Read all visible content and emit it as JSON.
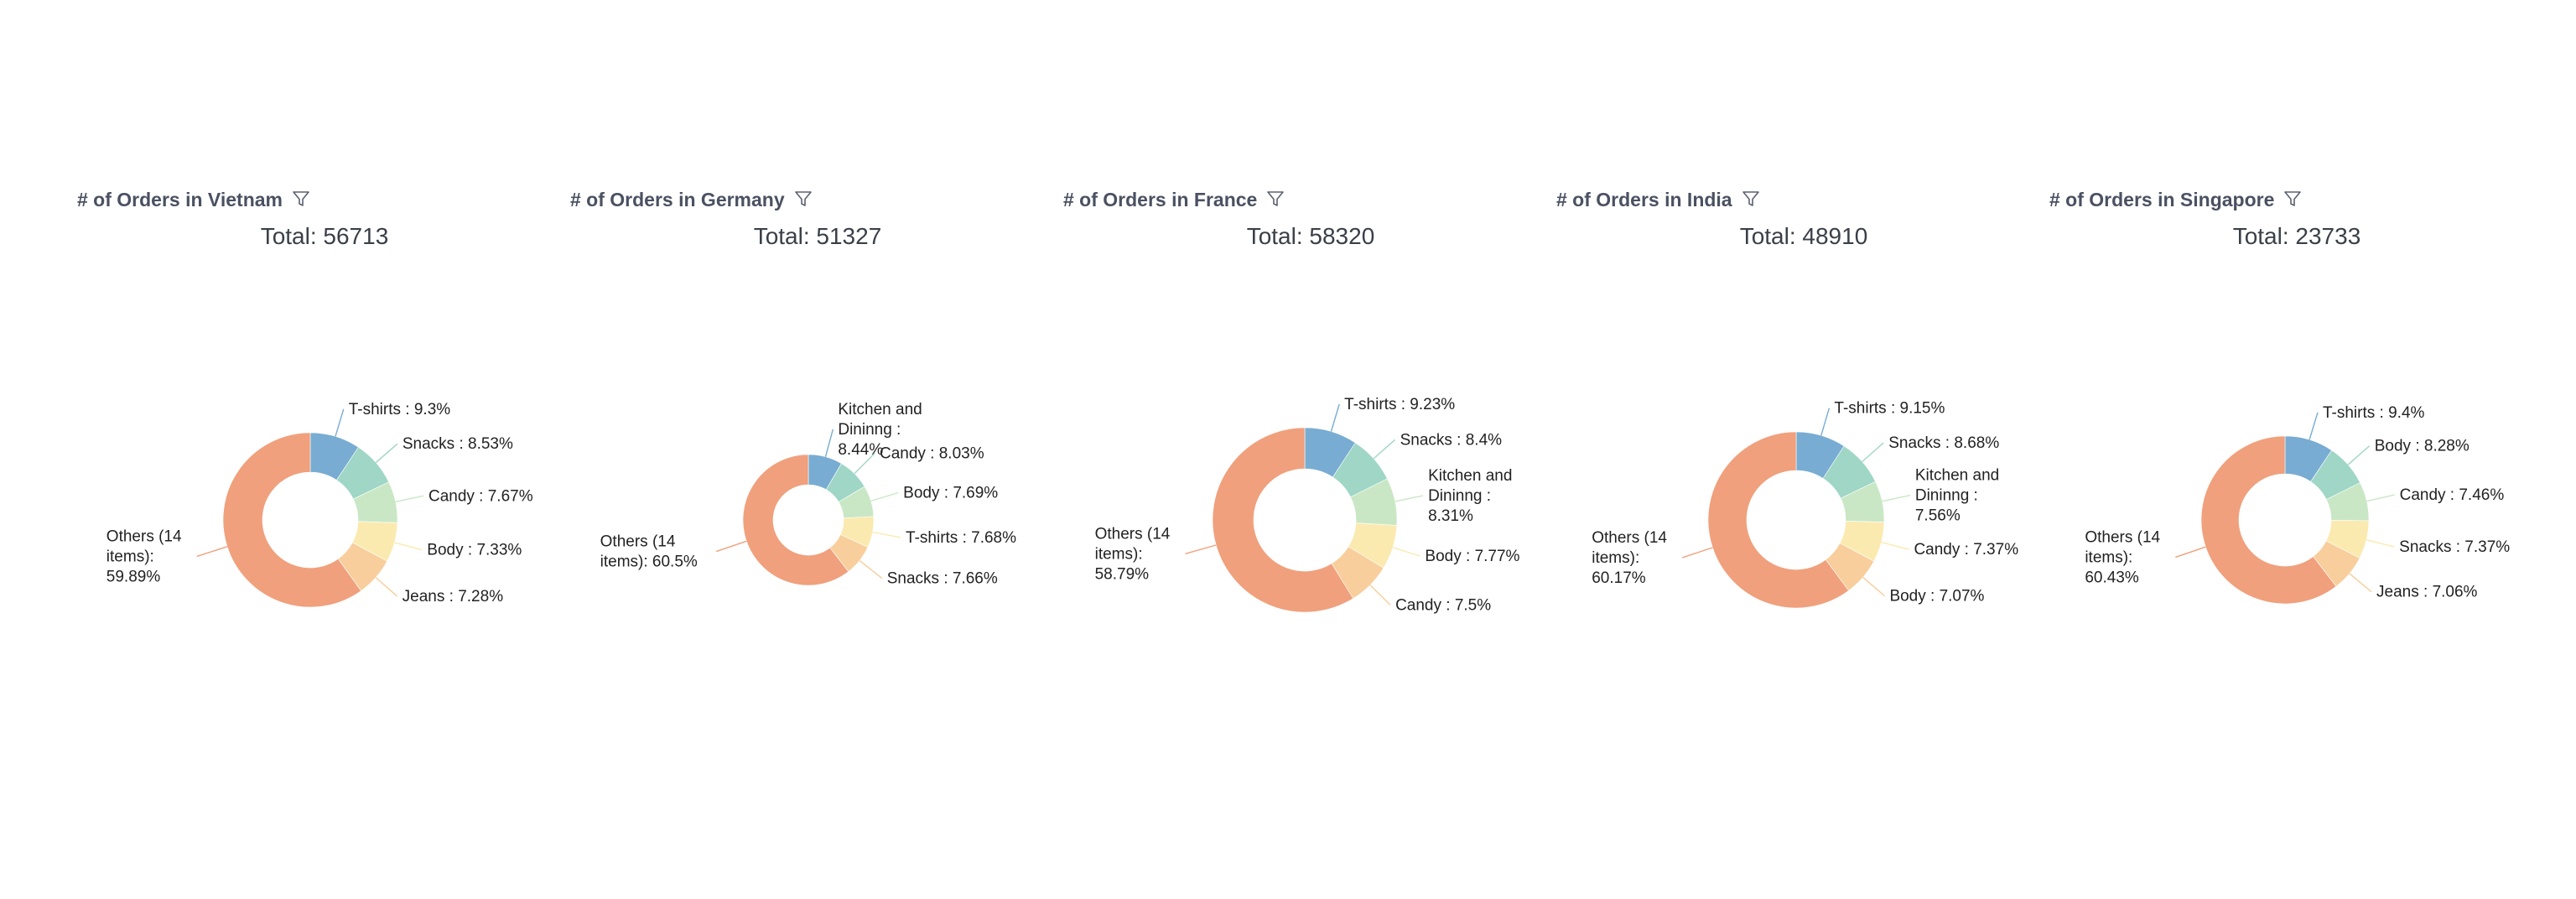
{
  "colors": {
    "others": "#f0a07c",
    "blue": "#78acd2",
    "teal": "#9fd6c6",
    "mint": "#c9e7c5",
    "pale_yellow": "#fbeab0",
    "peach": "#f8ce9c"
  },
  "filter_icon": "funnel-icon",
  "chart_data": [
    {
      "type": "pie",
      "title": "# of Orders in Vietnam",
      "subtitle": "Total: 56713",
      "slices": [
        {
          "label": "T-shirts : 9.3%",
          "value": 9.3,
          "color": "#78acd2"
        },
        {
          "label": "Snacks : 8.53%",
          "value": 8.53,
          "color": "#9fd6c6"
        },
        {
          "label": "Candy : 7.67%",
          "value": 7.67,
          "color": "#c9e7c5"
        },
        {
          "label": "Body : 7.33%",
          "value": 7.33,
          "color": "#fbeab0"
        },
        {
          "label": "Jeans : 7.28%",
          "value": 7.28,
          "color": "#f8ce9c"
        },
        {
          "label": "Others (14 items): 59.89%",
          "value": 59.89,
          "color": "#f0a07c"
        }
      ]
    },
    {
      "type": "pie",
      "title": "# of Orders in Germany",
      "subtitle": "Total: 51327",
      "slices": [
        {
          "label": "Kitchen and Dininng : 8.44%",
          "value": 8.44,
          "color": "#78acd2"
        },
        {
          "label": "Candy : 8.03%",
          "value": 8.03,
          "color": "#9fd6c6"
        },
        {
          "label": "Body : 7.69%",
          "value": 7.69,
          "color": "#c9e7c5"
        },
        {
          "label": "T-shirts : 7.68%",
          "value": 7.68,
          "color": "#fbeab0"
        },
        {
          "label": "Snacks : 7.66%",
          "value": 7.66,
          "color": "#f8ce9c"
        },
        {
          "label": "Others (14 items): 60.5%",
          "value": 60.5,
          "color": "#f0a07c"
        }
      ]
    },
    {
      "type": "pie",
      "title": "# of Orders in France",
      "subtitle": "Total: 58320",
      "slices": [
        {
          "label": "T-shirts : 9.23%",
          "value": 9.23,
          "color": "#78acd2"
        },
        {
          "label": "Snacks : 8.4%",
          "value": 8.4,
          "color": "#9fd6c6"
        },
        {
          "label": "Kitchen and Dininng : 8.31%",
          "value": 8.31,
          "color": "#c9e7c5"
        },
        {
          "label": "Body : 7.77%",
          "value": 7.77,
          "color": "#fbeab0"
        },
        {
          "label": "Candy : 7.5%",
          "value": 7.5,
          "color": "#f8ce9c"
        },
        {
          "label": "Others (14 items): 58.79%",
          "value": 58.79,
          "color": "#f0a07c"
        }
      ]
    },
    {
      "type": "pie",
      "title": "# of Orders in India",
      "subtitle": "Total: 48910",
      "slices": [
        {
          "label": "T-shirts : 9.15%",
          "value": 9.15,
          "color": "#78acd2"
        },
        {
          "label": "Snacks : 8.68%",
          "value": 8.68,
          "color": "#9fd6c6"
        },
        {
          "label": "Kitchen and Dininng : 7.56%",
          "value": 7.56,
          "color": "#c9e7c5"
        },
        {
          "label": "Candy : 7.37%",
          "value": 7.37,
          "color": "#fbeab0"
        },
        {
          "label": "Body : 7.07%",
          "value": 7.07,
          "color": "#f8ce9c"
        },
        {
          "label": "Others (14 items): 60.17%",
          "value": 60.17,
          "color": "#f0a07c"
        }
      ]
    },
    {
      "type": "pie",
      "title": "# of Orders in Singapore",
      "subtitle": "Total: 23733",
      "slices": [
        {
          "label": "T-shirts : 9.4%",
          "value": 9.4,
          "color": "#78acd2"
        },
        {
          "label": "Body : 8.28%",
          "value": 8.28,
          "color": "#9fd6c6"
        },
        {
          "label": "Candy : 7.46%",
          "value": 7.46,
          "color": "#c9e7c5"
        },
        {
          "label": "Snacks : 7.37%",
          "value": 7.37,
          "color": "#fbeab0"
        },
        {
          "label": "Jeans : 7.06%",
          "value": 7.06,
          "color": "#f8ce9c"
        },
        {
          "label": "Others (14 items): 60.43%",
          "value": 60.43,
          "color": "#f0a07c"
        }
      ]
    }
  ]
}
